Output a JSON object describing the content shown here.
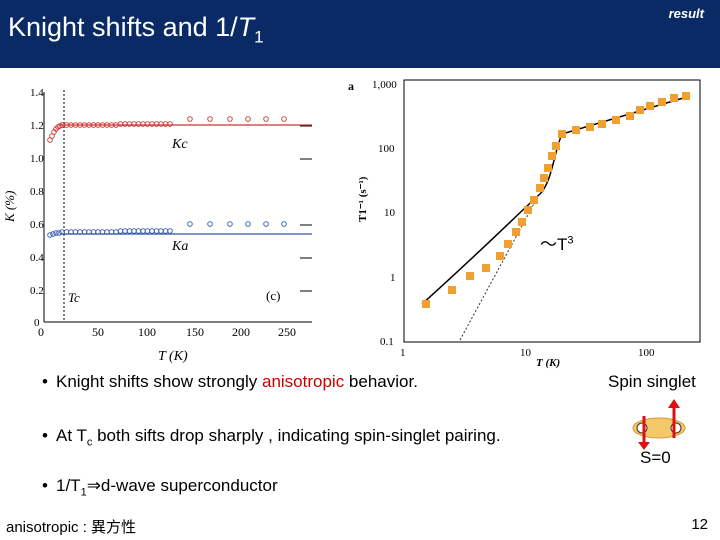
{
  "header": {
    "title_main": "Knight shifts and 1/",
    "title_T": "T",
    "title_sub": "1",
    "tag": "result"
  },
  "left_plot": {
    "yticks": [
      "1.4",
      "1.2",
      "1.0",
      "0.8",
      "0.6",
      "0.4",
      "0.2",
      "0"
    ],
    "xticks": [
      "0",
      "50",
      "100",
      "150",
      "200",
      "250"
    ],
    "ylabel": "K (%)",
    "xlabel": "T (K)",
    "label_kc": "Kc",
    "label_ka": "Ka",
    "label_tc": "Tc",
    "panel": "(c)"
  },
  "right_plot": {
    "panel": "a",
    "yticks": [
      "1,000",
      "100",
      "10",
      "1",
      "0.1"
    ],
    "xticks": [
      "1",
      "10",
      "100"
    ],
    "ylabel": "T1⁻¹ (s⁻¹)",
    "xlabel": "T (K)",
    "annotation": "～T",
    "annotation_sup": "3"
  },
  "bullets": {
    "b1_pre": "Knight shifts show strongly ",
    "b1_red": "anisotropic",
    "b1_post": " behavior.",
    "b2_pre": "At T",
    "b2_sub": "c",
    "b2_post": " both sifts drop sharply , indicating spin-singlet pairing.",
    "b3_pre": "1/T",
    "b3_sub": "1",
    "b3_post": "⇒d-wave superconductor"
  },
  "singlet": {
    "label": "Spin singlet",
    "s0": "S=0"
  },
  "footnote": "anisotropic : 異方性",
  "page_number": "12",
  "colors": {
    "header_bg": "#0a2a66",
    "kc_color": "#cc3333",
    "ka_color": "#3355aa",
    "data_orange": "#f0a030"
  }
}
